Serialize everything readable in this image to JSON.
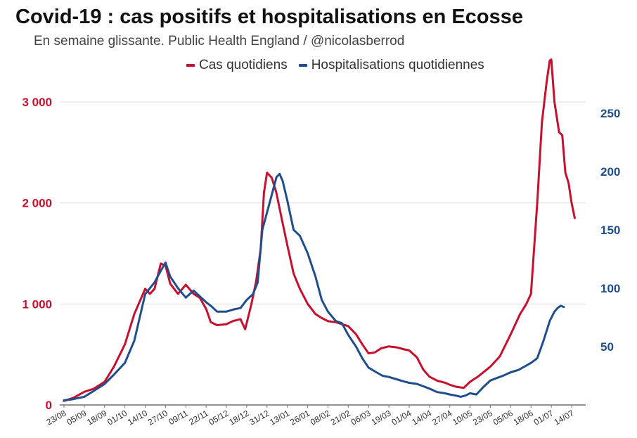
{
  "chart_data": {
    "type": "line",
    "title": "Covid-19 : cas positifs et hospitalisations en Ecosse",
    "subtitle": "En semaine glissante. Public Health England / @nicolasberrod",
    "xlabel": "",
    "ylabel_left": "",
    "ylabel_right": "",
    "legend_position": "top-right",
    "grid": true,
    "x_tick_labels": [
      "23/08",
      "05/09",
      "18/09",
      "01/10",
      "14/10",
      "27/10",
      "09/11",
      "22/11",
      "05/12",
      "18/12",
      "31/12",
      "13/01",
      "26/01",
      "08/02",
      "21/02",
      "06/03",
      "19/03",
      "01/04",
      "14/04",
      "27/04",
      "10/05",
      "23/05",
      "05/06",
      "18/06",
      "01/07",
      "14/07"
    ],
    "y_left": {
      "ticks": [
        0,
        1000,
        2000,
        3000
      ],
      "tick_labels": [
        "0",
        "1 000",
        "2 000",
        "3 000"
      ],
      "ylim": [
        0,
        3000
      ]
    },
    "y_right": {
      "ticks": [
        50,
        100,
        150,
        200,
        250
      ],
      "tick_labels": [
        "50",
        "100",
        "150",
        "200",
        "250"
      ],
      "ylim": [
        0,
        250
      ]
    },
    "series": [
      {
        "name": "Cas quotidiens",
        "axis": "left",
        "color": "#c8102e",
        "points": [
          [
            "23/08",
            40
          ],
          [
            "29/08",
            70
          ],
          [
            "05/09",
            130
          ],
          [
            "11/09",
            160
          ],
          [
            "18/09",
            230
          ],
          [
            "24/09",
            380
          ],
          [
            "01/10",
            600
          ],
          [
            "07/10",
            900
          ],
          [
            "14/10",
            1150
          ],
          [
            "17/10",
            1100
          ],
          [
            "20/10",
            1150
          ],
          [
            "24/10",
            1400
          ],
          [
            "27/10",
            1380
          ],
          [
            "30/10",
            1200
          ],
          [
            "04/11",
            1100
          ],
          [
            "09/11",
            1190
          ],
          [
            "14/11",
            1100
          ],
          [
            "18/11",
            1060
          ],
          [
            "22/11",
            950
          ],
          [
            "25/11",
            820
          ],
          [
            "29/11",
            790
          ],
          [
            "05/12",
            800
          ],
          [
            "09/12",
            830
          ],
          [
            "14/12",
            850
          ],
          [
            "17/12",
            750
          ],
          [
            "21/12",
            1000
          ],
          [
            "24/12",
            1220
          ],
          [
            "27/12",
            1550
          ],
          [
            "29/12",
            2100
          ],
          [
            "31/12",
            2300
          ],
          [
            "03/01",
            2250
          ],
          [
            "06/01",
            2100
          ],
          [
            "10/01",
            1800
          ],
          [
            "13/01",
            1580
          ],
          [
            "17/01",
            1300
          ],
          [
            "21/01",
            1150
          ],
          [
            "26/01",
            1000
          ],
          [
            "31/01",
            900
          ],
          [
            "04/02",
            860
          ],
          [
            "08/02",
            830
          ],
          [
            "13/02",
            820
          ],
          [
            "17/02",
            800
          ],
          [
            "21/02",
            780
          ],
          [
            "26/02",
            700
          ],
          [
            "02/03",
            600
          ],
          [
            "06/03",
            510
          ],
          [
            "10/03",
            520
          ],
          [
            "14/03",
            560
          ],
          [
            "19/03",
            580
          ],
          [
            "24/03",
            570
          ],
          [
            "29/03",
            550
          ],
          [
            "01/04",
            540
          ],
          [
            "06/04",
            470
          ],
          [
            "10/04",
            350
          ],
          [
            "14/04",
            280
          ],
          [
            "19/04",
            240
          ],
          [
            "24/04",
            220
          ],
          [
            "27/04",
            200
          ],
          [
            "01/05",
            180
          ],
          [
            "06/05",
            170
          ],
          [
            "10/05",
            230
          ],
          [
            "15/05",
            280
          ],
          [
            "23/05",
            380
          ],
          [
            "29/05",
            480
          ],
          [
            "05/06",
            700
          ],
          [
            "11/06",
            900
          ],
          [
            "15/06",
            1000
          ],
          [
            "18/06",
            1100
          ],
          [
            "22/06",
            2000
          ],
          [
            "25/06",
            2800
          ],
          [
            "28/06",
            3200
          ],
          [
            "30/06",
            3410
          ],
          [
            "01/07",
            3420
          ],
          [
            "03/07",
            3000
          ],
          [
            "06/07",
            2700
          ],
          [
            "08/07",
            2670
          ],
          [
            "10/07",
            2300
          ],
          [
            "12/07",
            2200
          ],
          [
            "14/07",
            2000
          ],
          [
            "16/07",
            1850
          ]
        ]
      },
      {
        "name": "Hospitalisations quotidiennes",
        "axis": "right",
        "color": "#1f4e8c",
        "points": [
          [
            "23/08",
            4
          ],
          [
            "29/08",
            5
          ],
          [
            "05/09",
            7
          ],
          [
            "11/09",
            12
          ],
          [
            "18/09",
            18
          ],
          [
            "24/09",
            26
          ],
          [
            "01/10",
            36
          ],
          [
            "07/10",
            55
          ],
          [
            "14/10",
            95
          ],
          [
            "20/10",
            105
          ],
          [
            "24/10",
            115
          ],
          [
            "27/10",
            122
          ],
          [
            "30/10",
            110
          ],
          [
            "04/11",
            100
          ],
          [
            "09/11",
            92
          ],
          [
            "14/11",
            98
          ],
          [
            "18/11",
            93
          ],
          [
            "22/11",
            88
          ],
          [
            "25/11",
            85
          ],
          [
            "29/11",
            80
          ],
          [
            "05/12",
            80
          ],
          [
            "10/12",
            82
          ],
          [
            "14/12",
            83
          ],
          [
            "18/12",
            90
          ],
          [
            "22/12",
            95
          ],
          [
            "25/12",
            105
          ],
          [
            "28/12",
            150
          ],
          [
            "31/12",
            165
          ],
          [
            "03/01",
            180
          ],
          [
            "06/01",
            195
          ],
          [
            "08/01",
            198
          ],
          [
            "10/01",
            192
          ],
          [
            "13/01",
            175
          ],
          [
            "17/01",
            150
          ],
          [
            "21/01",
            145
          ],
          [
            "26/01",
            130
          ],
          [
            "31/01",
            110
          ],
          [
            "04/02",
            90
          ],
          [
            "08/02",
            80
          ],
          [
            "13/02",
            72
          ],
          [
            "17/02",
            70
          ],
          [
            "21/02",
            60
          ],
          [
            "26/02",
            50
          ],
          [
            "02/03",
            40
          ],
          [
            "06/03",
            32
          ],
          [
            "11/03",
            28
          ],
          [
            "15/03",
            25
          ],
          [
            "19/03",
            24
          ],
          [
            "24/03",
            22
          ],
          [
            "29/03",
            20
          ],
          [
            "01/04",
            19
          ],
          [
            "06/04",
            18
          ],
          [
            "10/04",
            16
          ],
          [
            "14/04",
            14
          ],
          [
            "19/04",
            11
          ],
          [
            "24/04",
            10
          ],
          [
            "27/04",
            9
          ],
          [
            "01/05",
            8
          ],
          [
            "04/05",
            7
          ],
          [
            "07/05",
            8
          ],
          [
            "10/05",
            10
          ],
          [
            "14/05",
            9
          ],
          [
            "19/05",
            16
          ],
          [
            "23/05",
            21
          ],
          [
            "27/05",
            23
          ],
          [
            "31/05",
            25
          ],
          [
            "05/06",
            28
          ],
          [
            "10/06",
            30
          ],
          [
            "14/06",
            33
          ],
          [
            "18/06",
            36
          ],
          [
            "22/06",
            40
          ],
          [
            "26/06",
            55
          ],
          [
            "30/06",
            72
          ],
          [
            "03/07",
            80
          ],
          [
            "05/07",
            83
          ],
          [
            "07/07",
            85
          ],
          [
            "09/07",
            84
          ]
        ]
      }
    ]
  }
}
